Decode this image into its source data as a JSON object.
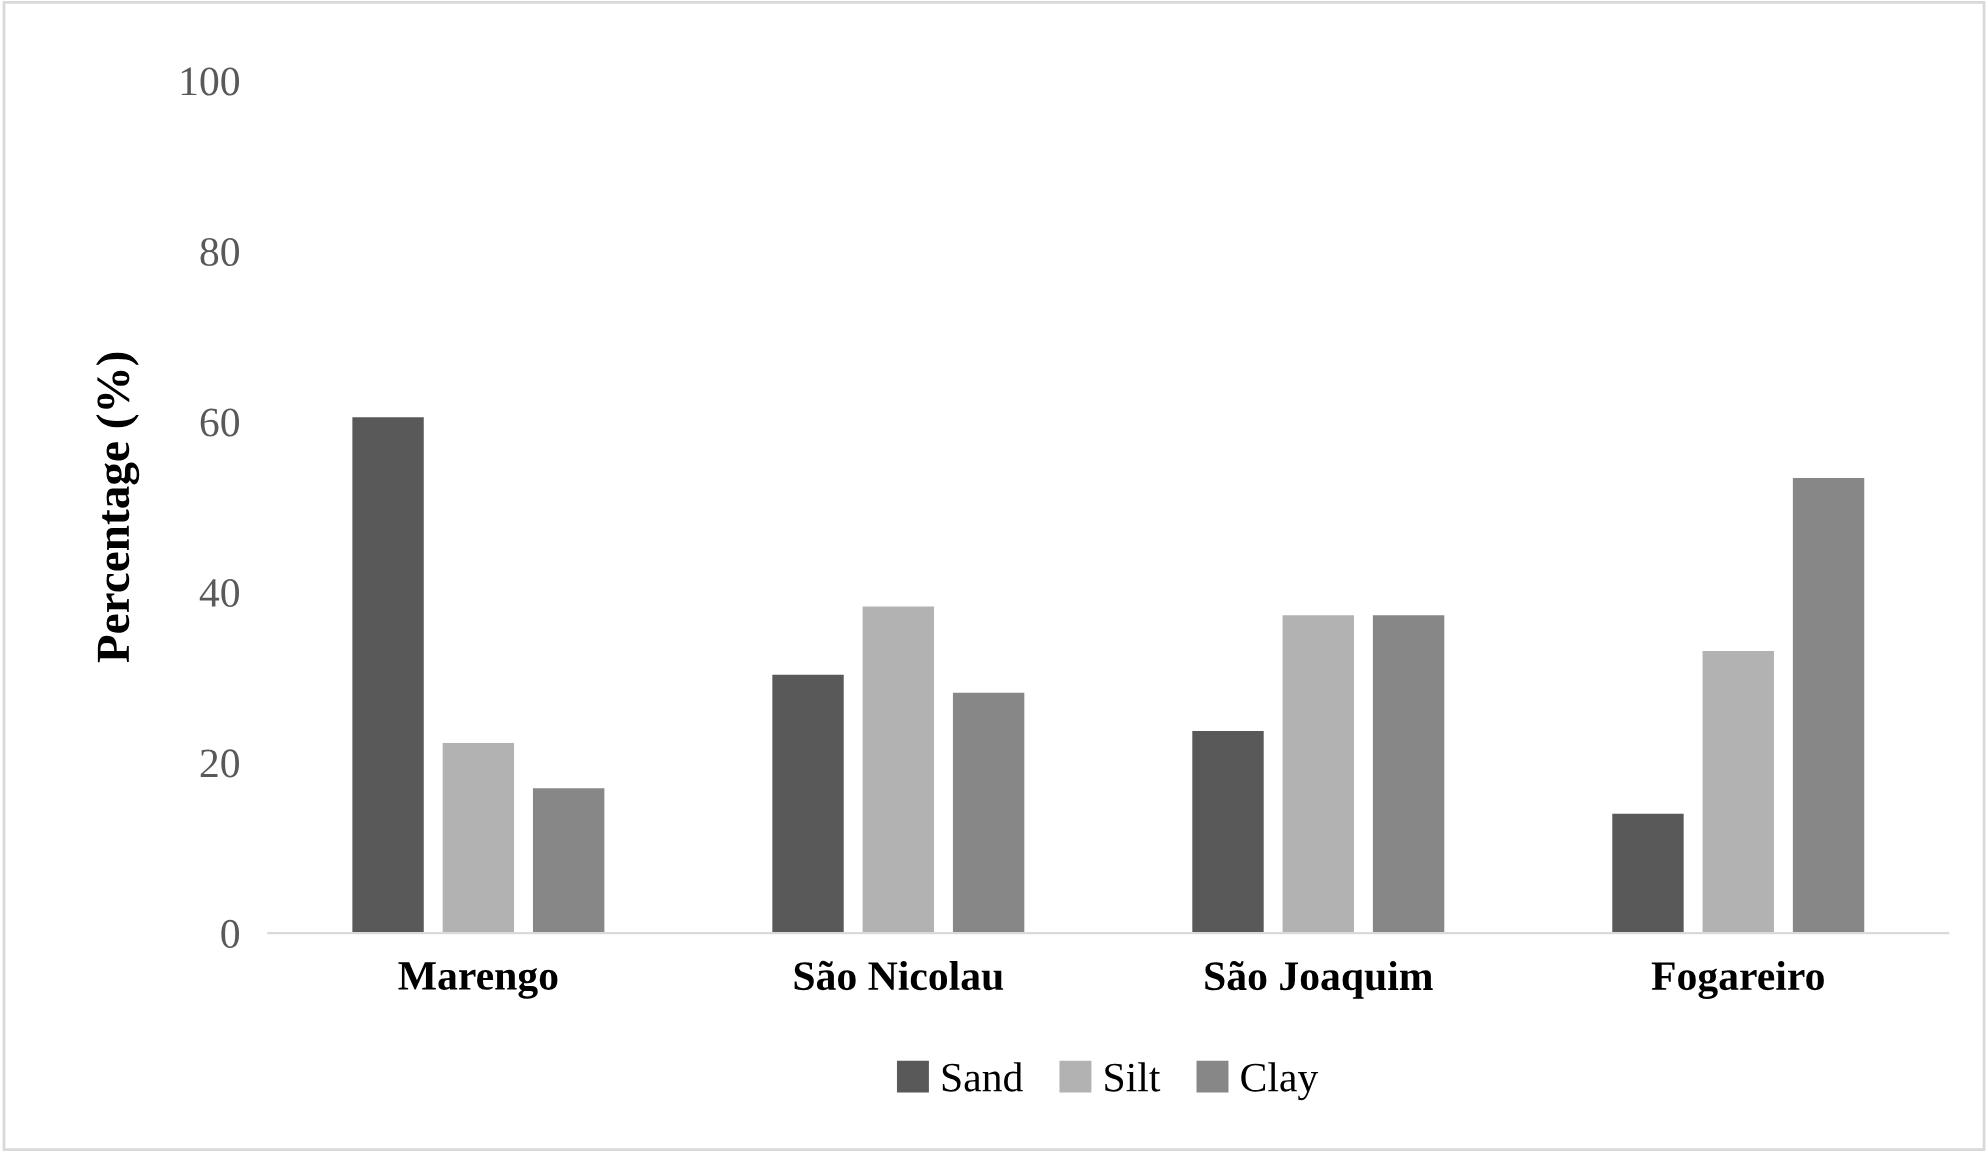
{
  "chart_data": {
    "type": "bar",
    "ylabel": "Percentage (%)",
    "categories": [
      "Marengo",
      "São Nicolau",
      "São Joaquim",
      "Fogareiro"
    ],
    "series": [
      {
        "name": "Sand",
        "color": "#595959",
        "values": [
          60.5,
          30.3,
          23.7,
          14.0
        ]
      },
      {
        "name": "Silt",
        "color": "#b2b2b2",
        "values": [
          22.3,
          38.3,
          37.3,
          33.1
        ]
      },
      {
        "name": "Clay",
        "color": "#878787",
        "values": [
          17.0,
          28.2,
          37.3,
          53.4
        ]
      }
    ],
    "ylim": [
      0,
      100
    ],
    "yticks": [
      0,
      20,
      40,
      60,
      80,
      100
    ],
    "grid": false,
    "legend": "bottom"
  }
}
